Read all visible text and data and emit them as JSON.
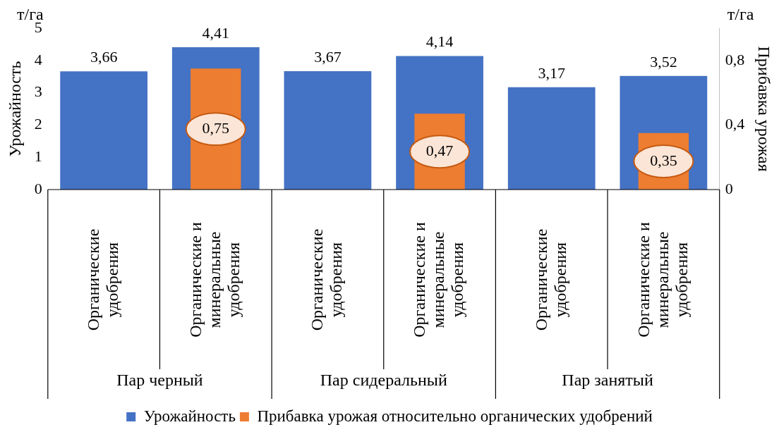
{
  "chart_data": {
    "type": "bar",
    "ylabel": "Урожайность",
    "y2label": "Прибавка урожая",
    "categories": [
      "Органические удобрения",
      "Органические и минеральные удобрения",
      "Органические удобрения",
      "Органические и минеральные удобрения",
      "Органические удобрения",
      "Органические и минеральные удобрения"
    ],
    "series": [
      {
        "name": "Урожайность",
        "color": "#4472c4",
        "values": [
          3.66,
          4.41,
          3.67,
          4.14,
          3.17,
          3.52
        ],
        "value_labels": [
          "3,66",
          "4,41",
          "3,67",
          "4,14",
          "3,17",
          "3,52"
        ]
      },
      {
        "name": "Прибавка урожая относительно органических удобрений",
        "color": "#ed7d31",
        "axis": "y2",
        "values": [
          null,
          0.75,
          null,
          0.47,
          null,
          0.35
        ],
        "value_labels": [
          null,
          "0,75",
          null,
          "0,47",
          null,
          "0,35"
        ]
      }
    ],
    "ylim": [
      0,
      5
    ],
    "yticks": [
      0,
      1,
      2,
      3,
      4,
      5
    ],
    "y2lim": [
      0,
      1
    ],
    "y2ticks": [
      0,
      {
        "value": 0.4,
        "label": "0,4"
      },
      {
        "value": 0.8,
        "label": "0,8"
      }
    ],
    "annotations": [
      "т/га",
      "т/га",
      "Пар черный",
      "Пар сидеральный",
      "Пар занятый"
    ],
    "legend": "bottom"
  }
}
